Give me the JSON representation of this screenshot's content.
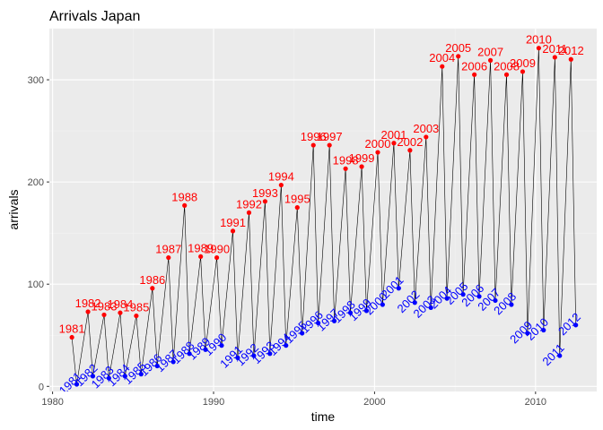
{
  "chart_data": {
    "type": "line",
    "title": "Arrivals Japan",
    "xlabel": "time",
    "ylabel": "arrivals",
    "xlim": [
      1979.8,
      2013.8
    ],
    "ylim": [
      -5,
      350
    ],
    "x_ticks": [
      1980,
      1990,
      2000,
      2010
    ],
    "y_ticks": [
      0,
      100,
      200,
      300
    ],
    "grid": true,
    "legend": "none",
    "colors": {
      "panel": "#ebebeb",
      "grid_major": "#ffffff",
      "grid_minor": "#f4f4f4",
      "series_line": "#000000",
      "high_points": "#ff0000",
      "low_points": "#0000ff"
    },
    "annual_high_points": [
      {
        "x": 1981.2,
        "y": 48,
        "label": "1981"
      },
      {
        "x": 1982.2,
        "y": 73,
        "label": "1982"
      },
      {
        "x": 1983.2,
        "y": 70,
        "label": "1983"
      },
      {
        "x": 1984.2,
        "y": 72,
        "label": "1984"
      },
      {
        "x": 1985.2,
        "y": 69,
        "label": "1985"
      },
      {
        "x": 1986.2,
        "y": 96,
        "label": "1986"
      },
      {
        "x": 1987.2,
        "y": 126,
        "label": "1987"
      },
      {
        "x": 1988.2,
        "y": 177,
        "label": "1988"
      },
      {
        "x": 1989.2,
        "y": 127,
        "label": "1989"
      },
      {
        "x": 1990.2,
        "y": 126,
        "label": "1990"
      },
      {
        "x": 1991.2,
        "y": 152,
        "label": "1991"
      },
      {
        "x": 1992.2,
        "y": 170,
        "label": "1992"
      },
      {
        "x": 1993.2,
        "y": 181,
        "label": "1993"
      },
      {
        "x": 1994.2,
        "y": 197,
        "label": "1994"
      },
      {
        "x": 1995.2,
        "y": 175,
        "label": "1995"
      },
      {
        "x": 1996.2,
        "y": 236,
        "label": "1996"
      },
      {
        "x": 1997.2,
        "y": 236,
        "label": "1997"
      },
      {
        "x": 1998.2,
        "y": 213,
        "label": "1998"
      },
      {
        "x": 1999.2,
        "y": 215,
        "label": "1999"
      },
      {
        "x": 2000.2,
        "y": 229,
        "label": "2000"
      },
      {
        "x": 2001.2,
        "y": 238,
        "label": "2001"
      },
      {
        "x": 2002.2,
        "y": 231,
        "label": "2002"
      },
      {
        "x": 2003.2,
        "y": 244,
        "label": "2003"
      },
      {
        "x": 2004.2,
        "y": 313,
        "label": "2004"
      },
      {
        "x": 2005.2,
        "y": 323,
        "label": "2005"
      },
      {
        "x": 2006.2,
        "y": 305,
        "label": "2006"
      },
      {
        "x": 2007.2,
        "y": 319,
        "label": "2007"
      },
      {
        "x": 2008.2,
        "y": 305,
        "label": "2008"
      },
      {
        "x": 2009.2,
        "y": 308,
        "label": "2009"
      },
      {
        "x": 2010.2,
        "y": 331,
        "label": "2010"
      },
      {
        "x": 2011.2,
        "y": 322,
        "label": "2011"
      },
      {
        "x": 2012.2,
        "y": 320,
        "label": "2012"
      }
    ],
    "annual_low_points": [
      {
        "x": 1981.5,
        "y": 2,
        "label": "1981"
      },
      {
        "x": 1982.5,
        "y": 10,
        "label": "1982"
      },
      {
        "x": 1983.5,
        "y": 8,
        "label": "1983"
      },
      {
        "x": 1984.5,
        "y": 10,
        "label": "1984"
      },
      {
        "x": 1985.5,
        "y": 12,
        "label": "1985"
      },
      {
        "x": 1986.5,
        "y": 20,
        "label": "1986"
      },
      {
        "x": 1987.5,
        "y": 24,
        "label": "1987"
      },
      {
        "x": 1988.5,
        "y": 32,
        "label": "1988"
      },
      {
        "x": 1989.5,
        "y": 36,
        "label": "1989"
      },
      {
        "x": 1990.5,
        "y": 40,
        "label": "1990"
      },
      {
        "x": 1991.5,
        "y": 28,
        "label": "1991"
      },
      {
        "x": 1992.5,
        "y": 30,
        "label": "1992"
      },
      {
        "x": 1993.5,
        "y": 32,
        "label": "1993"
      },
      {
        "x": 1994.5,
        "y": 40,
        "label": "1994"
      },
      {
        "x": 1995.5,
        "y": 52,
        "label": "1995"
      },
      {
        "x": 1996.5,
        "y": 62,
        "label": "1996"
      },
      {
        "x": 1997.5,
        "y": 64,
        "label": "1997"
      },
      {
        "x": 1998.5,
        "y": 72,
        "label": "1998"
      },
      {
        "x": 1999.5,
        "y": 74,
        "label": "1999"
      },
      {
        "x": 2000.5,
        "y": 80,
        "label": "2000"
      },
      {
        "x": 2001.5,
        "y": 96,
        "label": "2001"
      },
      {
        "x": 2002.5,
        "y": 82,
        "label": "2002"
      },
      {
        "x": 2003.5,
        "y": 77,
        "label": "2003"
      },
      {
        "x": 2004.5,
        "y": 86,
        "label": "2004"
      },
      {
        "x": 2005.5,
        "y": 90,
        "label": "2005"
      },
      {
        "x": 2006.5,
        "y": 88,
        "label": "2006"
      },
      {
        "x": 2007.5,
        "y": 84,
        "label": "2007"
      },
      {
        "x": 2008.5,
        "y": 80,
        "label": "2008"
      },
      {
        "x": 2009.5,
        "y": 52,
        "label": "2009"
      },
      {
        "x": 2010.5,
        "y": 55,
        "label": "2010"
      },
      {
        "x": 2011.5,
        "y": 30,
        "label": "2011"
      },
      {
        "x": 2012.5,
        "y": 60,
        "label": "2012"
      }
    ]
  }
}
